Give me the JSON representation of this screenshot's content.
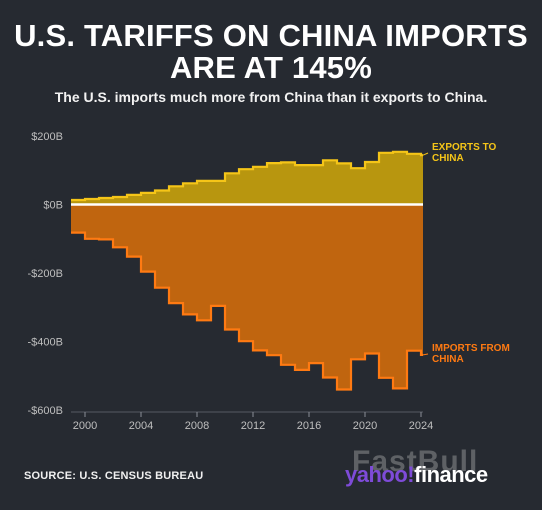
{
  "header": {
    "title_line1": "U.S. TARIFFS ON CHINA IMPORTS",
    "title_line2": "ARE AT 145%",
    "subtitle": "The U.S. imports much more from China than it exports to China."
  },
  "colors": {
    "background": "#262a31",
    "exports_fill": "#b8960f",
    "exports_line": "#f5c518",
    "imports_fill": "#c0650f",
    "imports_line": "#ff7a12",
    "axis_text": "#bfbfbf",
    "zero_line": "#ffffff"
  },
  "chart_data": {
    "type": "area",
    "title": "",
    "xlabel": "",
    "ylabel": "",
    "x": [
      1999,
      2000,
      2001,
      2002,
      2003,
      2004,
      2005,
      2006,
      2007,
      2008,
      2009,
      2010,
      2011,
      2012,
      2013,
      2014,
      2015,
      2016,
      2017,
      2018,
      2019,
      2020,
      2021,
      2022,
      2023,
      2024
    ],
    "xticks": [
      2000,
      2004,
      2008,
      2012,
      2016,
      2020,
      2024
    ],
    "xtick_labels": [
      "2000",
      "2004",
      "2008",
      "2012",
      "2016",
      "2020",
      "2024"
    ],
    "ylim": [
      -600,
      200
    ],
    "yticks": [
      200,
      0,
      -200,
      -400,
      -600
    ],
    "ytick_labels": [
      "$200B",
      "$0B",
      "-$200B",
      "-$400B",
      "-$600B"
    ],
    "series": [
      {
        "name": "EXPORTS TO CHINA",
        "label_lines": [
          "EXPORTS TO",
          "CHINA"
        ],
        "values": [
          13,
          16,
          19,
          22,
          28,
          34,
          41,
          53,
          62,
          69,
          69,
          91,
          103,
          110,
          121,
          123,
          115,
          115,
          129,
          120,
          106,
          124,
          151,
          154,
          148,
          144
        ]
      },
      {
        "name": "IMPORTS FROM CHINA",
        "label_lines": [
          "IMPORTS FROM",
          "CHINA"
        ],
        "values": [
          -82,
          -100,
          -102,
          -125,
          -152,
          -196,
          -243,
          -288,
          -321,
          -338,
          -296,
          -365,
          -399,
          -426,
          -440,
          -468,
          -483,
          -463,
          -505,
          -540,
          -452,
          -435,
          -506,
          -537,
          -427,
          -439
        ]
      }
    ],
    "grid": false,
    "legend": "direct labels at right end of series"
  },
  "footer": {
    "source": "SOURCE: U.S. CENSUS BUREAU",
    "watermark": "FastBull",
    "logo_part1": "yahoo!",
    "logo_part2": "finance"
  }
}
